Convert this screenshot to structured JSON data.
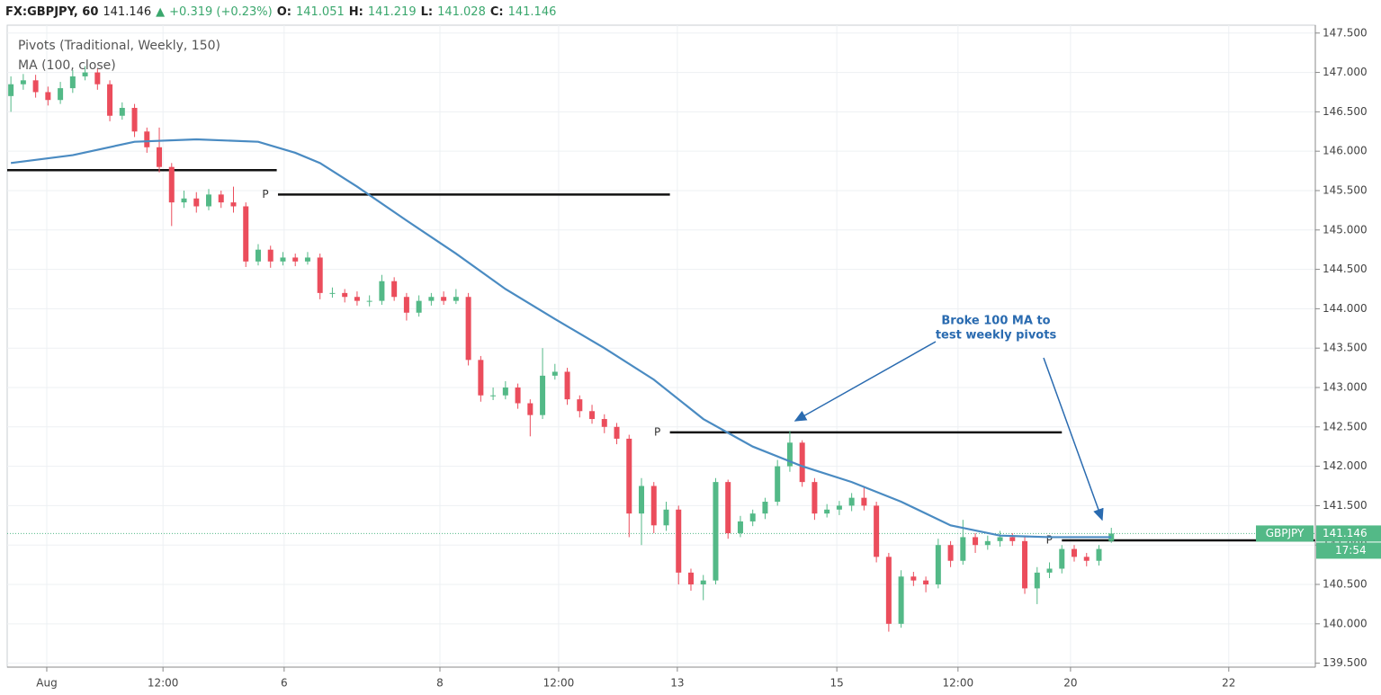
{
  "header": {
    "symbol": "FX:GBPJPY, 60",
    "change": "+0.319 (+0.23%)",
    "open_key": "O:",
    "high_key": "H:",
    "low_key": "L:",
    "close_key": "C:"
  },
  "chart_data": {
    "type": "candlestick",
    "indicators": [
      "Pivots (Traditional, Weekly, 150)",
      "MA (100, close)"
    ],
    "xlim": [
      -0.3,
      105.5
    ],
    "xticks": [
      {
        "value": 2.9,
        "label": "Aug"
      },
      {
        "value": 12.3,
        "label": "12:00"
      },
      {
        "value": 22.1,
        "label": "6"
      },
      {
        "value": 34.7,
        "label": "8"
      },
      {
        "value": 44.3,
        "label": "12:00"
      },
      {
        "value": 53.9,
        "label": "13"
      },
      {
        "value": 66.8,
        "label": "15"
      },
      {
        "value": 76.6,
        "label": "12:00"
      },
      {
        "value": 85.7,
        "label": "20"
      },
      {
        "value": 98.5,
        "label": "22"
      }
    ],
    "ylim": [
      139.45,
      147.6
    ],
    "yticks": [
      {
        "value": 139.5,
        "label": "139.500"
      },
      {
        "value": 140,
        "label": "140.000"
      },
      {
        "value": 140.5,
        "label": "140.500"
      },
      {
        "value": 141,
        "label": "141.000"
      },
      {
        "value": 141.5,
        "label": "141.500"
      },
      {
        "value": 142,
        "label": "142.000"
      },
      {
        "value": 142.5,
        "label": "142.500"
      },
      {
        "value": 143,
        "label": "143.000"
      },
      {
        "value": 143.5,
        "label": "143.500"
      },
      {
        "value": 144,
        "label": "144.000"
      },
      {
        "value": 144.5,
        "label": "144.500"
      },
      {
        "value": 145,
        "label": "145.000"
      },
      {
        "value": 145.5,
        "label": "145.500"
      },
      {
        "value": 146,
        "label": "146.000"
      },
      {
        "value": 146.5,
        "label": "146.500"
      },
      {
        "value": 147,
        "label": "147.000"
      },
      {
        "value": 147.5,
        "label": "147.500"
      }
    ],
    "grid": true,
    "candles": {
      "up_color": "#53b987",
      "down_color": "#eb4d5c",
      "open": [
        146.7,
        146.85,
        146.9,
        146.75,
        146.65,
        146.8,
        146.95,
        147.0,
        146.85,
        146.45,
        146.55,
        146.25,
        146.05,
        145.8,
        145.35,
        145.4,
        145.3,
        145.45,
        145.35,
        145.3,
        144.6,
        144.75,
        144.6,
        144.65,
        144.6,
        144.65,
        144.2,
        144.2,
        144.15,
        144.1,
        144.1,
        144.35,
        144.15,
        143.95,
        144.1,
        144.15,
        144.1,
        144.15,
        143.35,
        142.9,
        142.9,
        143.0,
        142.8,
        142.65,
        143.15,
        143.2,
        142.85,
        142.7,
        142.6,
        142.5,
        142.35,
        141.4,
        141.75,
        141.25,
        141.45,
        140.65,
        140.5,
        140.55,
        141.8,
        141.15,
        141.3,
        141.4,
        141.55,
        142.0,
        142.3,
        141.8,
        141.4,
        141.45,
        141.5,
        141.6,
        141.5,
        140.85,
        140.0,
        140.6,
        140.55,
        140.5,
        141.0,
        140.8,
        141.1,
        141.0,
        141.05,
        141.1,
        141.05,
        140.45,
        140.65,
        140.7,
        140.95,
        140.85,
        140.8,
        141.051
      ],
      "high": [
        146.95,
        146.98,
        146.97,
        146.82,
        146.88,
        147.03,
        147.08,
        147.05,
        146.9,
        146.62,
        146.6,
        146.3,
        146.3,
        145.85,
        145.5,
        145.48,
        145.52,
        145.5,
        145.55,
        145.35,
        144.82,
        144.8,
        144.72,
        144.7,
        144.72,
        144.7,
        144.27,
        144.25,
        144.22,
        144.17,
        144.43,
        144.4,
        144.2,
        144.17,
        144.2,
        144.22,
        144.25,
        144.2,
        143.4,
        143.0,
        143.08,
        143.05,
        142.85,
        143.5,
        143.3,
        143.25,
        142.9,
        142.78,
        142.66,
        142.55,
        142.4,
        141.85,
        141.8,
        141.55,
        141.5,
        140.7,
        140.62,
        141.85,
        141.83,
        141.37,
        141.45,
        141.6,
        142.08,
        142.45,
        142.33,
        141.85,
        141.52,
        141.56,
        141.66,
        141.75,
        141.55,
        140.9,
        140.68,
        140.66,
        140.6,
        141.08,
        141.05,
        141.32,
        141.15,
        141.12,
        141.18,
        141.15,
        141.1,
        140.72,
        140.78,
        141.0,
        141.0,
        140.9,
        141.0,
        141.219
      ],
      "low": [
        146.5,
        146.78,
        146.68,
        146.58,
        146.6,
        146.74,
        146.9,
        146.78,
        146.38,
        146.4,
        146.18,
        145.98,
        145.73,
        145.05,
        145.28,
        145.22,
        145.25,
        145.28,
        145.22,
        144.53,
        144.55,
        144.52,
        144.55,
        144.54,
        144.56,
        144.12,
        144.14,
        144.08,
        144.04,
        144.03,
        144.05,
        144.1,
        143.85,
        143.9,
        144.04,
        144.05,
        144.06,
        143.28,
        142.82,
        142.84,
        142.85,
        142.73,
        142.38,
        142.6,
        143.1,
        142.78,
        142.62,
        142.54,
        142.42,
        142.28,
        141.1,
        141.0,
        141.15,
        141.18,
        140.5,
        140.42,
        140.3,
        140.5,
        141.08,
        141.1,
        141.24,
        141.33,
        141.5,
        141.93,
        141.74,
        141.32,
        141.35,
        141.38,
        141.43,
        141.44,
        140.78,
        139.9,
        139.95,
        140.48,
        140.4,
        140.45,
        140.72,
        140.75,
        140.9,
        140.94,
        140.98,
        140.99,
        140.38,
        140.25,
        140.58,
        140.64,
        140.79,
        140.73,
        140.74,
        141.028
      ],
      "close": [
        146.85,
        146.9,
        146.75,
        146.65,
        146.8,
        146.95,
        147.0,
        146.85,
        146.45,
        146.55,
        146.25,
        146.05,
        145.8,
        145.35,
        145.4,
        145.3,
        145.45,
        145.35,
        145.3,
        144.6,
        144.75,
        144.6,
        144.65,
        144.6,
        144.65,
        144.2,
        144.2,
        144.15,
        144.1,
        144.1,
        144.35,
        144.15,
        143.95,
        144.1,
        144.15,
        144.1,
        144.15,
        143.35,
        142.9,
        142.9,
        143.0,
        142.8,
        142.65,
        143.15,
        143.2,
        142.85,
        142.7,
        142.6,
        142.5,
        142.35,
        141.4,
        141.75,
        141.25,
        141.45,
        140.65,
        140.5,
        140.55,
        141.8,
        141.15,
        141.3,
        141.4,
        141.55,
        142.0,
        142.3,
        141.8,
        141.4,
        141.45,
        141.5,
        141.6,
        141.5,
        140.85,
        140.0,
        140.6,
        140.55,
        140.5,
        141.0,
        140.8,
        141.1,
        141.0,
        141.05,
        141.1,
        141.05,
        140.45,
        140.65,
        140.7,
        140.95,
        140.85,
        140.8,
        140.95,
        141.146
      ]
    },
    "ma": {
      "color": "#4a8bc2",
      "x": [
        0,
        5,
        10,
        15,
        20,
        23,
        25,
        28,
        32,
        36,
        40,
        44,
        48,
        52,
        56,
        60,
        64,
        68,
        72,
        76,
        80,
        84,
        89
      ],
      "values": [
        145.85,
        145.95,
        146.12,
        146.15,
        146.12,
        145.98,
        145.85,
        145.55,
        145.12,
        144.7,
        144.25,
        143.87,
        143.5,
        143.1,
        142.6,
        142.25,
        142.0,
        141.8,
        141.55,
        141.25,
        141.12,
        141.1,
        141.1
      ]
    },
    "pivots": {
      "color": "#111111",
      "segments": [
        {
          "x": [
            -0.3,
            21.5
          ],
          "value": 145.76
        },
        {
          "label": "P",
          "x": [
            21.6,
            53.3
          ],
          "value": 145.45
        },
        {
          "label": "P",
          "x": [
            53.3,
            85.0
          ],
          "value": 142.43
        },
        {
          "label": "P",
          "x": [
            85.0,
            105.5
          ],
          "value": 141.06
        }
      ]
    },
    "last_price": {
      "symbol": "GBPJPY",
      "countdown": "17:54",
      "color": "#53b987"
    },
    "annotation": {
      "lines": [
        "Broke 100 MA to",
        "test weekly pivots"
      ],
      "color": "#2a6bb0"
    }
  }
}
